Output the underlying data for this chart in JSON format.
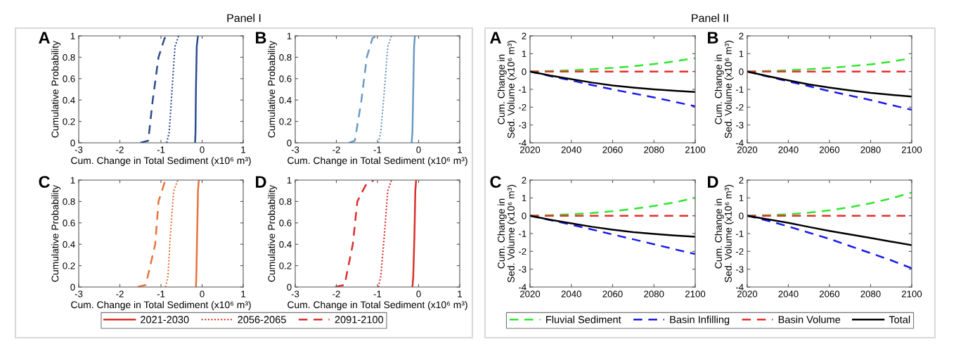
{
  "chart_data": [
    {
      "type": "line",
      "title": "A",
      "annotations": [
        "Panel I"
      ],
      "xlabel": "Cum. Change in Total Sediment (x10⁶ m³)",
      "ylabel": "Cumulative Probability",
      "xlim": [
        -3,
        1
      ],
      "xticks": [
        -3,
        -2,
        -1,
        0,
        1
      ],
      "ylim": [
        0,
        1
      ],
      "yticks": [
        0,
        0.2,
        0.4,
        0.6,
        0.8,
        1
      ],
      "grid": false,
      "legend": false,
      "series": [
        {
          "color": "#2b4c8e",
          "line_style": "solid",
          "x": [
            -0.17,
            -0.16,
            -0.15,
            -0.13,
            -0.1
          ],
          "values": [
            0,
            0.1,
            0.5,
            0.9,
            1
          ]
        },
        {
          "color": "#2b4c8e",
          "line_style": "dotted",
          "x": [
            -0.86,
            -0.8,
            -0.73,
            -0.66,
            -0.57
          ],
          "values": [
            0,
            0.1,
            0.5,
            0.9,
            1
          ]
        },
        {
          "color": "#2b4c8e",
          "line_style": "dashed",
          "x": [
            -1.5,
            -1.31,
            -1.2,
            -1.06,
            -0.91,
            -0.82
          ],
          "values": [
            0,
            0.02,
            0.4,
            0.8,
            0.98,
            1
          ]
        }
      ]
    },
    {
      "type": "line",
      "title": "B",
      "xlabel": "Cum. Change in Total Sediment (x10⁶ m³)",
      "ylabel": "Cumulative Probability",
      "xlim": [
        -3,
        1
      ],
      "xticks": [
        -3,
        -2,
        -1,
        0,
        1
      ],
      "ylim": [
        0,
        1
      ],
      "yticks": [
        0,
        0.2,
        0.4,
        0.6,
        0.8,
        1
      ],
      "grid": false,
      "legend": false,
      "series": [
        {
          "color": "#6a9ac4",
          "line_style": "solid",
          "x": [
            -0.17,
            -0.15,
            -0.13,
            -0.11,
            -0.09
          ],
          "values": [
            0,
            0.1,
            0.5,
            0.9,
            1
          ]
        },
        {
          "color": "#6a9ac4",
          "line_style": "dotted",
          "x": [
            -0.98,
            -0.92,
            -0.83,
            -0.75,
            -0.66
          ],
          "values": [
            0,
            0.1,
            0.5,
            0.9,
            1
          ]
        },
        {
          "color": "#6a9ac4",
          "line_style": "dashed",
          "x": [
            -1.69,
            -1.55,
            -1.39,
            -1.26,
            -1.12,
            -1.0
          ],
          "values": [
            0,
            0.02,
            0.4,
            0.8,
            0.98,
            1
          ]
        }
      ]
    },
    {
      "type": "line",
      "title": "C",
      "xlabel": "Cum. Change in Total Sediment (x10⁶ m³)",
      "ylabel": "Cumulative Probability",
      "xlim": [
        -3,
        1
      ],
      "xticks": [
        -3,
        -2,
        -1,
        0,
        1
      ],
      "ylim": [
        0,
        1
      ],
      "yticks": [
        0,
        0.2,
        0.4,
        0.6,
        0.8,
        1
      ],
      "grid": false,
      "legend": false,
      "series": [
        {
          "color": "#e8733a",
          "line_style": "solid",
          "x": [
            -0.15,
            -0.14,
            -0.12,
            -0.1,
            -0.08
          ],
          "values": [
            0,
            0.1,
            0.5,
            0.9,
            1
          ]
        },
        {
          "color": "#e8733a",
          "line_style": "dotted",
          "x": [
            -0.89,
            -0.83,
            -0.77,
            -0.69,
            -0.59
          ],
          "values": [
            0,
            0.1,
            0.5,
            0.9,
            1
          ]
        },
        {
          "color": "#e8733a",
          "line_style": "dashed",
          "x": [
            -1.57,
            -1.37,
            -1.14,
            -1.06,
            -0.91,
            -0.83
          ],
          "values": [
            0,
            0.02,
            0.4,
            0.8,
            0.98,
            1
          ]
        }
      ]
    },
    {
      "type": "line",
      "title": "D",
      "xlabel": "Cum. Change in Total Sediment (x10⁶ m³)",
      "ylabel": "Cumulative Probability",
      "xlim": [
        -3,
        1
      ],
      "xticks": [
        -3,
        -2,
        -1,
        0,
        1
      ],
      "ylim": [
        0,
        1
      ],
      "yticks": [
        0,
        0.2,
        0.4,
        0.6,
        0.8,
        1
      ],
      "grid": false,
      "legend": "bottom",
      "series": [
        {
          "name": "2021-2030",
          "color": "#d9302c",
          "line_style": "solid",
          "x": [
            -0.15,
            -0.13,
            -0.1,
            -0.08,
            -0.06
          ],
          "values": [
            0,
            0.1,
            0.5,
            0.9,
            1
          ]
        },
        {
          "name": "2056-2065",
          "color": "#d9302c",
          "line_style": "dotted",
          "x": [
            -0.98,
            -0.92,
            -0.83,
            -0.75,
            -0.66
          ],
          "values": [
            0,
            0.1,
            0.5,
            0.9,
            1
          ]
        },
        {
          "name": "2091-2100",
          "color": "#d9302c",
          "line_style": "dashed",
          "x": [
            -2.03,
            -1.8,
            -1.6,
            -1.49,
            -1.29,
            -1.09
          ],
          "values": [
            0,
            0.02,
            0.4,
            0.8,
            0.95,
            1
          ]
        }
      ]
    },
    {
      "type": "line",
      "title": "A",
      "annotations": [
        "Panel II"
      ],
      "ylabel": "Cum. Change in\nSed. Volume (x10⁶ m³)",
      "x": [
        2020,
        2030,
        2040,
        2050,
        2060,
        2070,
        2080,
        2090,
        2100
      ],
      "xlim": [
        2020,
        2100
      ],
      "xticks": [
        2020,
        2040,
        2060,
        2080,
        2100
      ],
      "ylim": [
        -4,
        2
      ],
      "yticks": [
        -4,
        -3,
        -2,
        -1,
        0,
        1,
        2
      ],
      "grid": false,
      "legend": false,
      "series": [
        {
          "color": "#2ee62e",
          "line_style": "dashed",
          "values": [
            0,
            0.03,
            0.07,
            0.13,
            0.2,
            0.3,
            0.42,
            0.57,
            0.75
          ]
        },
        {
          "color": "#1a1aeb",
          "line_style": "dashed",
          "values": [
            0,
            -0.26,
            -0.5,
            -0.76,
            -1.0,
            -1.23,
            -1.45,
            -1.7,
            -1.95
          ]
        },
        {
          "color": "#e62e2e",
          "line_style": "dashed",
          "values": [
            0,
            0,
            0,
            0,
            0,
            0,
            0,
            0,
            0
          ]
        },
        {
          "color": "#000000",
          "line_style": "solid",
          "values": [
            0,
            -0.23,
            -0.43,
            -0.62,
            -0.78,
            -0.9,
            -1.0,
            -1.08,
            -1.15
          ]
        }
      ]
    },
    {
      "type": "line",
      "title": "B",
      "ylabel": "Cum. Change in\nSed. Volume (x10⁶ m³)",
      "x": [
        2020,
        2030,
        2040,
        2050,
        2060,
        2070,
        2080,
        2090,
        2100
      ],
      "xlim": [
        2020,
        2100
      ],
      "xticks": [
        2020,
        2040,
        2060,
        2080,
        2100
      ],
      "ylim": [
        -4,
        2
      ],
      "yticks": [
        -4,
        -3,
        -2,
        -1,
        0,
        1,
        2
      ],
      "grid": false,
      "legend": false,
      "series": [
        {
          "color": "#2ee62e",
          "line_style": "dashed",
          "values": [
            0,
            0.03,
            0.07,
            0.13,
            0.2,
            0.3,
            0.4,
            0.55,
            0.75
          ]
        },
        {
          "color": "#1a1aeb",
          "line_style": "dashed",
          "values": [
            0,
            -0.28,
            -0.55,
            -0.82,
            -1.1,
            -1.35,
            -1.6,
            -1.88,
            -2.15
          ]
        },
        {
          "color": "#e62e2e",
          "line_style": "dashed",
          "values": [
            0,
            0,
            0,
            0,
            0,
            0,
            0,
            0,
            0
          ]
        },
        {
          "color": "#000000",
          "line_style": "solid",
          "values": [
            0,
            -0.26,
            -0.5,
            -0.72,
            -0.9,
            -1.06,
            -1.2,
            -1.31,
            -1.4
          ]
        }
      ]
    },
    {
      "type": "line",
      "title": "C",
      "ylabel": "Cum. Change in\nSed. Volume (x10⁶ m³)",
      "x": [
        2020,
        2030,
        2040,
        2050,
        2060,
        2070,
        2080,
        2090,
        2100
      ],
      "xlim": [
        2020,
        2100
      ],
      "xticks": [
        2020,
        2040,
        2060,
        2080,
        2100
      ],
      "ylim": [
        -4,
        2
      ],
      "yticks": [
        -4,
        -3,
        -2,
        -1,
        0,
        1,
        2
      ],
      "grid": false,
      "legend": false,
      "series": [
        {
          "color": "#2ee62e",
          "line_style": "dashed",
          "values": [
            0,
            0.03,
            0.08,
            0.15,
            0.25,
            0.38,
            0.55,
            0.75,
            1.0
          ]
        },
        {
          "color": "#1a1aeb",
          "line_style": "dashed",
          "values": [
            0,
            -0.25,
            -0.5,
            -0.77,
            -1.05,
            -1.32,
            -1.6,
            -1.88,
            -2.15
          ]
        },
        {
          "color": "#e62e2e",
          "line_style": "dashed",
          "values": [
            0,
            0,
            0,
            0,
            0,
            0,
            0,
            0,
            0
          ]
        },
        {
          "color": "#000000",
          "line_style": "solid",
          "values": [
            0,
            -0.23,
            -0.43,
            -0.62,
            -0.78,
            -0.92,
            -1.02,
            -1.11,
            -1.18
          ]
        }
      ]
    },
    {
      "type": "line",
      "title": "D",
      "ylabel": "Cum. Change in\nSed. Volume (x10⁶ m³)",
      "x": [
        2020,
        2030,
        2040,
        2050,
        2060,
        2070,
        2080,
        2090,
        2100
      ],
      "xlim": [
        2020,
        2100
      ],
      "xticks": [
        2020,
        2040,
        2060,
        2080,
        2100
      ],
      "ylim": [
        -4,
        2
      ],
      "yticks": [
        -4,
        -3,
        -2,
        -1,
        0,
        1,
        2
      ],
      "grid": false,
      "legend": "bottom",
      "series": [
        {
          "name": "Fluvial Sediment",
          "color": "#2ee62e",
          "line_style": "dashed",
          "values": [
            0,
            0.03,
            0.08,
            0.17,
            0.3,
            0.48,
            0.7,
            0.97,
            1.3
          ]
        },
        {
          "name": "Basin Infilling",
          "color": "#1a1aeb",
          "line_style": "dashed",
          "values": [
            0,
            -0.28,
            -0.6,
            -0.95,
            -1.3,
            -1.7,
            -2.1,
            -2.5,
            -2.95
          ]
        },
        {
          "name": "Basin Volume",
          "color": "#e62e2e",
          "line_style": "dashed",
          "values": [
            0,
            0,
            0,
            0,
            0,
            0,
            0,
            0,
            0
          ]
        },
        {
          "name": "Total",
          "color": "#000000",
          "line_style": "solid",
          "values": [
            0,
            -0.2,
            -0.4,
            -0.63,
            -0.85,
            -1.05,
            -1.25,
            -1.45,
            -1.65
          ]
        }
      ]
    }
  ]
}
